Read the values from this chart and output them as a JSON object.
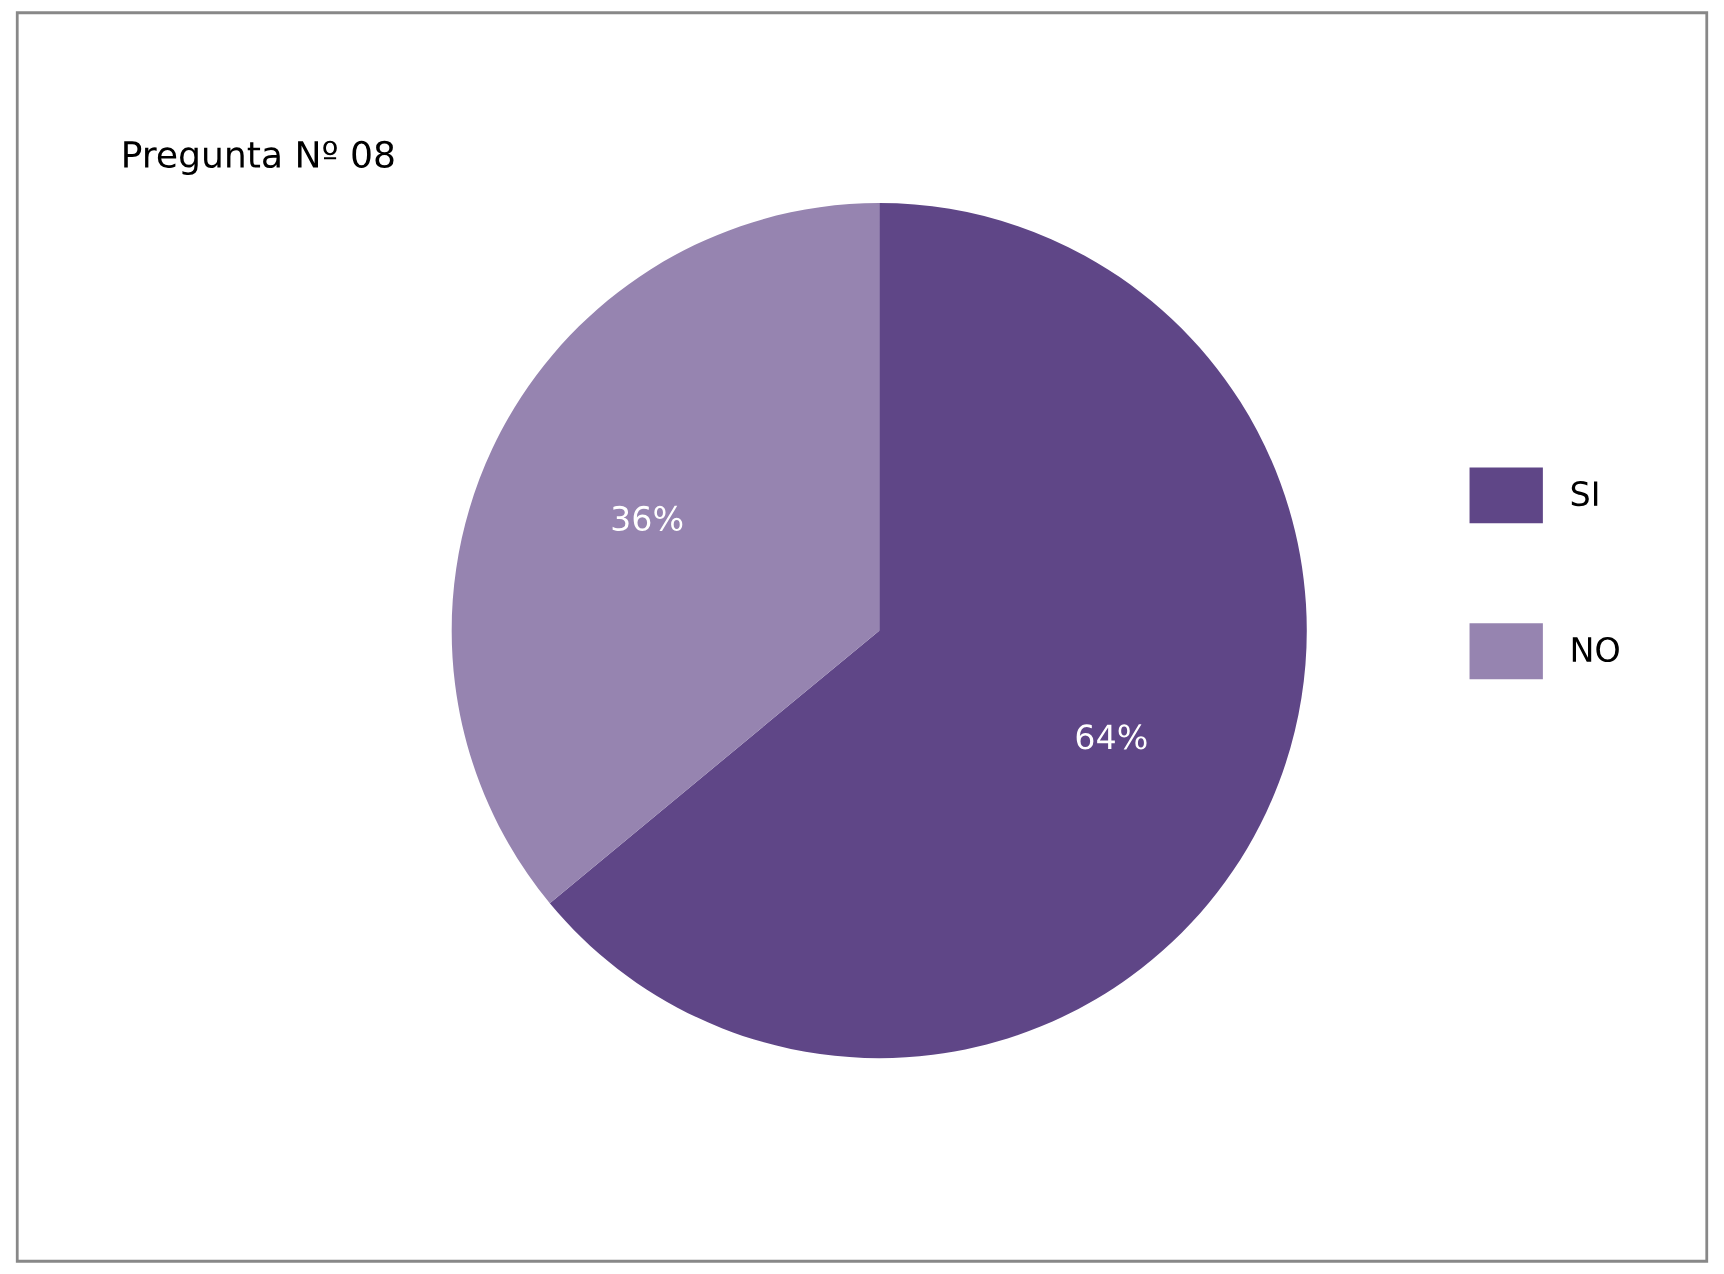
{
  "chart_data": {
    "type": "pie",
    "title": "Pregunta Nº 08",
    "categories": [
      "SI",
      "NO"
    ],
    "values": [
      64,
      36
    ],
    "colors": [
      "#5f4687",
      "#9684b0"
    ],
    "value_labels": [
      "64%",
      "36%"
    ],
    "legend": "right"
  }
}
